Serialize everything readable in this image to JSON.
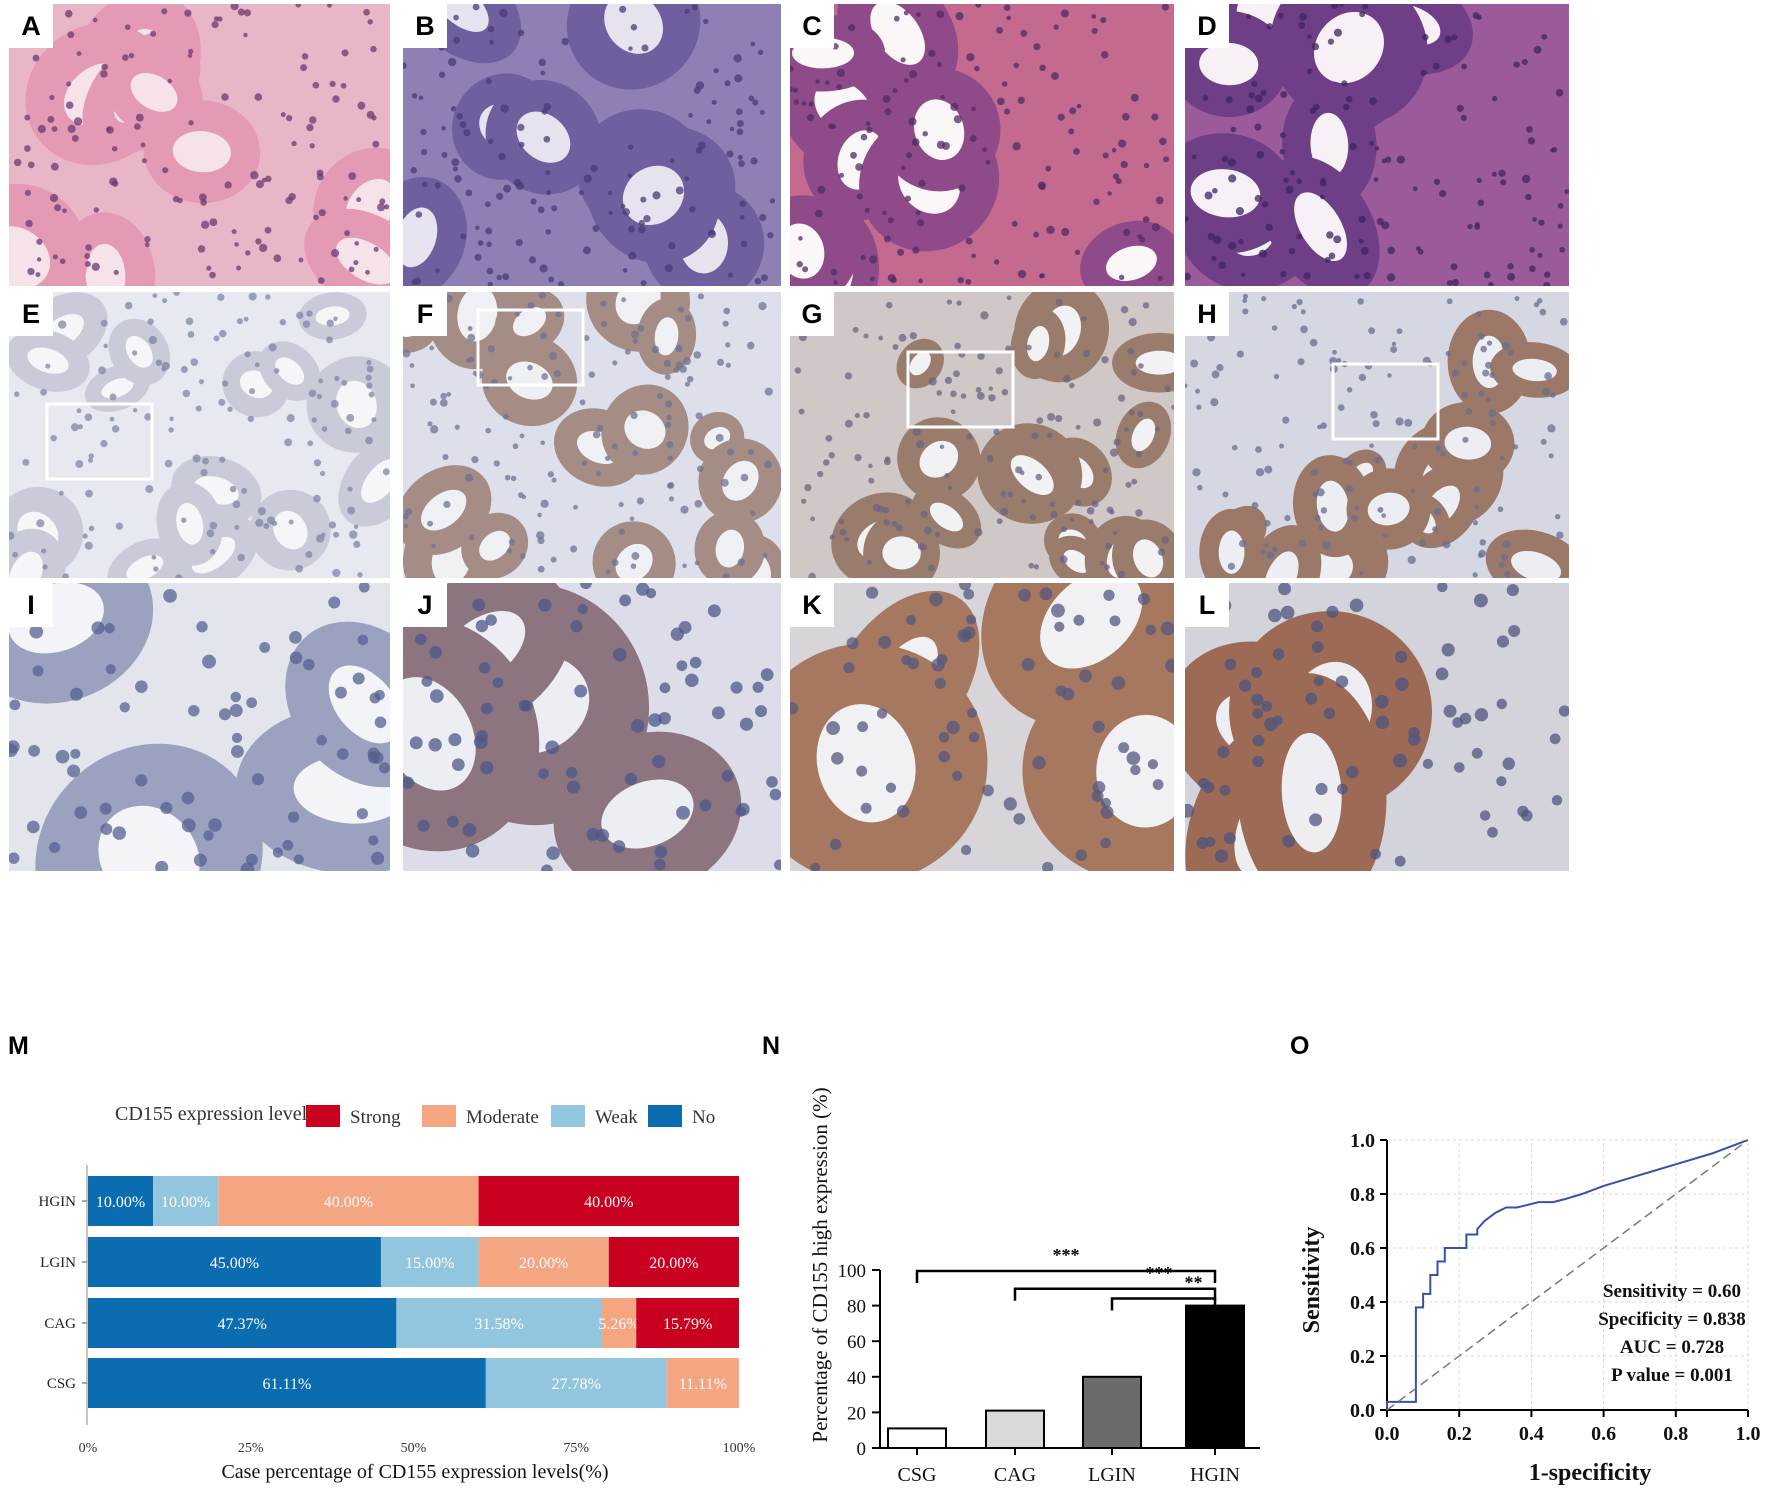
{
  "micrographs": {
    "he": [
      {
        "label": "A",
        "stain": "H&E",
        "colors": {
          "base": "#e9b6c8",
          "gland": "#e49ab4",
          "nucleus": "#6a3a70",
          "lumen": "#f6e3ea"
        }
      },
      {
        "label": "B",
        "stain": "H&E",
        "colors": {
          "base": "#8f7fb4",
          "gland": "#6f5f9e",
          "nucleus": "#4a3a7a",
          "lumen": "#e6e2ee"
        }
      },
      {
        "label": "C",
        "stain": "H&E",
        "colors": {
          "base": "#c36a8e",
          "gland": "#8f4a8a",
          "nucleus": "#4e2c66",
          "lumen": "#fbf6f8"
        }
      },
      {
        "label": "D",
        "stain": "H&E",
        "colors": {
          "base": "#9b5a9a",
          "gland": "#6e3f86",
          "nucleus": "#3e2561",
          "lumen": "#f7f0f6"
        }
      }
    ],
    "ihc_low": [
      {
        "label": "E",
        "stain": "IHC",
        "colors": {
          "base": "#e6e9ef",
          "gland": "#c9ccd8",
          "nucleus": "#7d86a6",
          "lumen": "#f5f6f8"
        }
      },
      {
        "label": "F",
        "stain": "IHC",
        "colors": {
          "base": "#dde0ea",
          "gland": "#a58c85",
          "nucleus": "#6e7396",
          "lumen": "#eef0f4"
        }
      },
      {
        "label": "G",
        "stain": "IHC",
        "colors": {
          "base": "#cfc8c6",
          "gland": "#9a7c6c",
          "nucleus": "#6b6482",
          "lumen": "#f2f2f4"
        }
      },
      {
        "label": "H",
        "stain": "IHC",
        "colors": {
          "base": "#d5d8e2",
          "gland": "#9b7868",
          "nucleus": "#676e90",
          "lumen": "#eceef3"
        }
      }
    ],
    "ihc_high": [
      {
        "label": "I",
        "stain": "IHC",
        "colors": {
          "base": "#e3e5ec",
          "gland": "#9aa2c0",
          "nucleus": "#556091",
          "lumen": "#f3f4f7"
        }
      },
      {
        "label": "J",
        "stain": "IHC",
        "colors": {
          "base": "#dcdde8",
          "gland": "#8d7580",
          "nucleus": "#4d5789",
          "lumen": "#eceef4"
        }
      },
      {
        "label": "K",
        "stain": "IHC",
        "colors": {
          "base": "#d7d5da",
          "gland": "#a6785f",
          "nucleus": "#55587e",
          "lumen": "#f1f0f2"
        }
      },
      {
        "label": "L",
        "stain": "IHC",
        "colors": {
          "base": "#d3d3dc",
          "gland": "#9c6a55",
          "nucleus": "#4f5680",
          "lumen": "#eeedf1"
        }
      }
    ]
  },
  "panel_labels": {
    "m": "M",
    "n": "N",
    "o": "O"
  },
  "chart_data": [
    {
      "type": "bar",
      "orientation": "horizontal-stacked",
      "legend_title": "CD155 expression levels",
      "legend_placement": "top",
      "categories": [
        "HGIN",
        "LGIN",
        "CAG",
        "CSG"
      ],
      "series": [
        {
          "name": "No",
          "color": "#0b6db0",
          "values": [
            10.0,
            45.0,
            47.37,
            61.11
          ],
          "labels": [
            "10.00%",
            "45.00%",
            "47.37%",
            "61.11%"
          ]
        },
        {
          "name": "Weak",
          "color": "#92c5de",
          "values": [
            10.0,
            15.0,
            31.58,
            27.78
          ],
          "labels": [
            "10.00%",
            "15.00%",
            "31.58%",
            "27.78%"
          ]
        },
        {
          "name": "Moderate",
          "color": "#f4a582",
          "values": [
            40.0,
            20.0,
            5.26,
            11.11
          ],
          "labels": [
            "40.00%",
            "20.00%",
            "5.26%",
            "11.11%"
          ]
        },
        {
          "name": "Strong",
          "color": "#ca0020",
          "values": [
            40.0,
            20.0,
            15.79,
            0
          ],
          "labels": [
            "40.00%",
            "20.00%",
            "15.79%",
            ""
          ]
        }
      ],
      "legend_order": [
        "Strong",
        "Moderate",
        "Weak",
        "No"
      ],
      "xlabel": "Case percentage of CD155 expression levels(%)",
      "xticks": [
        "0%",
        "25%",
        "50%",
        "75%",
        "100%"
      ],
      "xlim": [
        0,
        100
      ],
      "grid": false
    },
    {
      "type": "bar",
      "categories": [
        "CSG",
        "CAG",
        "LGIN",
        "HGIN"
      ],
      "values": [
        11,
        21,
        40,
        80
      ],
      "colors": [
        "#ffffff",
        "#d9d9d9",
        "#6b6b6b",
        "#000000"
      ],
      "ylabel": "Percentage of CD155 high expression (%)",
      "ylim": [
        0,
        100
      ],
      "yticks": [
        "0",
        "20",
        "40",
        "60",
        "80",
        "100"
      ],
      "significance": [
        {
          "from": "CSG",
          "to": "HGIN",
          "label": "***"
        },
        {
          "from": "CAG",
          "to": "HGIN",
          "label": "***"
        },
        {
          "from": "LGIN",
          "to": "HGIN",
          "label": "**"
        }
      ],
      "grid": false
    },
    {
      "type": "line",
      "xlabel": "1-specificity",
      "ylabel": "Sensitivity",
      "xlim": [
        0,
        1
      ],
      "ylim": [
        0,
        1
      ],
      "xticks": [
        "0.0",
        "0.2",
        "0.4",
        "0.6",
        "0.8",
        "1.0"
      ],
      "yticks": [
        "0.0",
        "0.2",
        "0.4",
        "0.6",
        "0.8",
        "1.0"
      ],
      "grid": true,
      "series": [
        {
          "color": "#3652a8",
          "x": [
            0,
            0,
            0.05,
            0.05,
            0.08,
            0.08,
            0.1,
            0.1,
            0.12,
            0.12,
            0.14,
            0.14,
            0.16,
            0.16,
            0.19,
            0.19,
            0.22,
            0.22,
            0.25,
            0.25,
            0.27,
            0.3,
            0.33,
            0.36,
            0.39,
            0.42,
            0.46,
            0.49,
            0.54,
            0.6,
            0.7,
            0.8,
            0.9,
            1.0
          ],
          "y": [
            0,
            0.03,
            0.03,
            0.03,
            0.03,
            0.38,
            0.38,
            0.43,
            0.43,
            0.5,
            0.5,
            0.55,
            0.55,
            0.6,
            0.6,
            0.6,
            0.6,
            0.65,
            0.65,
            0.67,
            0.7,
            0.73,
            0.75,
            0.75,
            0.76,
            0.77,
            0.77,
            0.78,
            0.8,
            0.83,
            0.87,
            0.91,
            0.95,
            1.0
          ]
        },
        {
          "color": "#777777",
          "dashed": true,
          "x": [
            0,
            1
          ],
          "y": [
            0,
            1
          ]
        }
      ],
      "annotations": [
        "Sensitivity = 0.60",
        "Specificity = 0.838",
        "AUC = 0.728",
        "P value = 0.001"
      ]
    }
  ]
}
